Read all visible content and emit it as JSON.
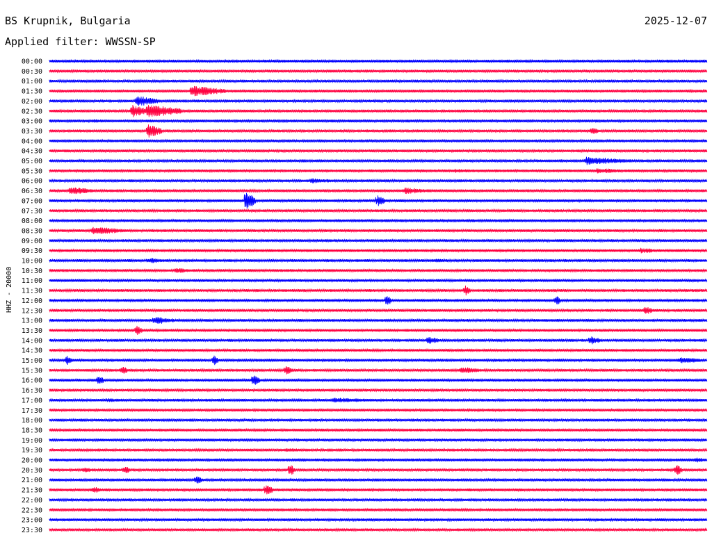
{
  "header": {
    "station": "BS Krupnik, Bulgaria",
    "date": "2025-12-07",
    "filter": "Applied filter: WWSSN-SP"
  },
  "channel_label": "HHZ - 20000",
  "colors": {
    "even_rows": "#0000ff",
    "odd_rows": "#ff0040",
    "background": "#ffffff"
  },
  "chart_data": {
    "type": "line",
    "title": "BS Krupnik, Bulgaria",
    "subtitle": "Applied filter: WWSSN-SP",
    "ylabel": "HHZ - 20000",
    "xlabel": "",
    "rows": [
      "00:00",
      "00:30",
      "01:00",
      "01:30",
      "02:00",
      "02:30",
      "03:00",
      "03:30",
      "04:00",
      "04:30",
      "05:00",
      "05:30",
      "06:00",
      "06:30",
      "07:00",
      "07:30",
      "08:00",
      "08:30",
      "09:00",
      "09:30",
      "10:00",
      "10:30",
      "11:00",
      "11:30",
      "12:00",
      "12:30",
      "13:00",
      "13:30",
      "14:00",
      "14:30",
      "15:00",
      "15:30",
      "16:00",
      "16:30",
      "17:00",
      "17:30",
      "18:00",
      "18:30",
      "19:00",
      "19:30",
      "20:00",
      "20:30",
      "21:00",
      "21:30",
      "22:00",
      "22:30",
      "23:00",
      "23:30"
    ],
    "row_minutes": 30,
    "grid": false,
    "series_colors_alternate": [
      "blue",
      "red"
    ],
    "events": [
      {
        "row": 3,
        "minute": 6.5,
        "amplitude": 8,
        "duration": 1.5
      },
      {
        "row": 4,
        "minute": 4.0,
        "amplitude": 8,
        "duration": 1.0
      },
      {
        "row": 5,
        "minute": 4.5,
        "amplitude": 10,
        "duration": 1.5
      },
      {
        "row": 5,
        "minute": 3.8,
        "amplitude": 9,
        "duration": 0.8
      },
      {
        "row": 6,
        "minute": 2.1,
        "amplitude": 4,
        "duration": 0.3
      },
      {
        "row": 7,
        "minute": 4.5,
        "amplitude": 10,
        "duration": 0.6
      },
      {
        "row": 7,
        "minute": 24.8,
        "amplitude": 6,
        "duration": 0.3
      },
      {
        "row": 10,
        "minute": 24.5,
        "amplitude": 6,
        "duration": 2.0
      },
      {
        "row": 11,
        "minute": 25.0,
        "amplitude": 4,
        "duration": 1.5
      },
      {
        "row": 11,
        "minute": 18.5,
        "amplitude": 3,
        "duration": 1.2
      },
      {
        "row": 12,
        "minute": 12.0,
        "amplitude": 4,
        "duration": 1.0
      },
      {
        "row": 13,
        "minute": 1.0,
        "amplitude": 6,
        "duration": 1.0
      },
      {
        "row": 13,
        "minute": 16.2,
        "amplitude": 5,
        "duration": 1.2
      },
      {
        "row": 14,
        "minute": 9.0,
        "amplitude": 14,
        "duration": 0.4
      },
      {
        "row": 14,
        "minute": 15.0,
        "amplitude": 8,
        "duration": 0.3
      },
      {
        "row": 17,
        "minute": 2.0,
        "amplitude": 6,
        "duration": 1.5
      },
      {
        "row": 19,
        "minute": 27.0,
        "amplitude": 4,
        "duration": 1.0
      },
      {
        "row": 20,
        "minute": 4.5,
        "amplitude": 4,
        "duration": 1.0
      },
      {
        "row": 20,
        "minute": 17.5,
        "amplitude": 3,
        "duration": 1.0
      },
      {
        "row": 21,
        "minute": 5.8,
        "amplitude": 4,
        "duration": 0.8
      },
      {
        "row": 23,
        "minute": 19.0,
        "amplitude": 8,
        "duration": 0.2
      },
      {
        "row": 24,
        "minute": 15.4,
        "amplitude": 8,
        "duration": 0.2
      },
      {
        "row": 24,
        "minute": 23.1,
        "amplitude": 8,
        "duration": 0.2
      },
      {
        "row": 25,
        "minute": 27.2,
        "amplitude": 7,
        "duration": 0.3
      },
      {
        "row": 26,
        "minute": 4.8,
        "amplitude": 6,
        "duration": 1.0
      },
      {
        "row": 27,
        "minute": 4.0,
        "amplitude": 8,
        "duration": 0.2
      },
      {
        "row": 28,
        "minute": 17.3,
        "amplitude": 6,
        "duration": 0.5
      },
      {
        "row": 28,
        "minute": 24.7,
        "amplitude": 6,
        "duration": 0.5
      },
      {
        "row": 30,
        "minute": 0.8,
        "amplitude": 7,
        "duration": 0.2
      },
      {
        "row": 30,
        "minute": 7.5,
        "amplitude": 9,
        "duration": 0.2
      },
      {
        "row": 30,
        "minute": 28.8,
        "amplitude": 5,
        "duration": 1.0
      },
      {
        "row": 31,
        "minute": 3.3,
        "amplitude": 6,
        "duration": 0.3
      },
      {
        "row": 31,
        "minute": 10.8,
        "amplitude": 7,
        "duration": 0.3
      },
      {
        "row": 31,
        "minute": 18.8,
        "amplitude": 5,
        "duration": 1.0
      },
      {
        "row": 32,
        "minute": 2.2,
        "amplitude": 7,
        "duration": 0.3
      },
      {
        "row": 32,
        "minute": 9.3,
        "amplitude": 8,
        "duration": 0.3
      },
      {
        "row": 34,
        "minute": 2.6,
        "amplitude": 3,
        "duration": 1.2
      },
      {
        "row": 34,
        "minute": 13.0,
        "amplitude": 4,
        "duration": 2.0
      },
      {
        "row": 39,
        "minute": 10.8,
        "amplitude": 3,
        "duration": 2.0
      },
      {
        "row": 40,
        "minute": 29.5,
        "amplitude": 4,
        "duration": 0.5
      },
      {
        "row": 41,
        "minute": 1.6,
        "amplitude": 4,
        "duration": 0.5
      },
      {
        "row": 41,
        "minute": 3.4,
        "amplitude": 6,
        "duration": 0.3
      },
      {
        "row": 41,
        "minute": 11.0,
        "amplitude": 8,
        "duration": 0.2
      },
      {
        "row": 41,
        "minute": 28.6,
        "amplitude": 8,
        "duration": 0.3
      },
      {
        "row": 42,
        "minute": 6.7,
        "amplitude": 6,
        "duration": 0.3
      },
      {
        "row": 43,
        "minute": 2.0,
        "amplitude": 5,
        "duration": 0.4
      },
      {
        "row": 43,
        "minute": 9.9,
        "amplitude": 8,
        "duration": 0.3
      }
    ]
  }
}
